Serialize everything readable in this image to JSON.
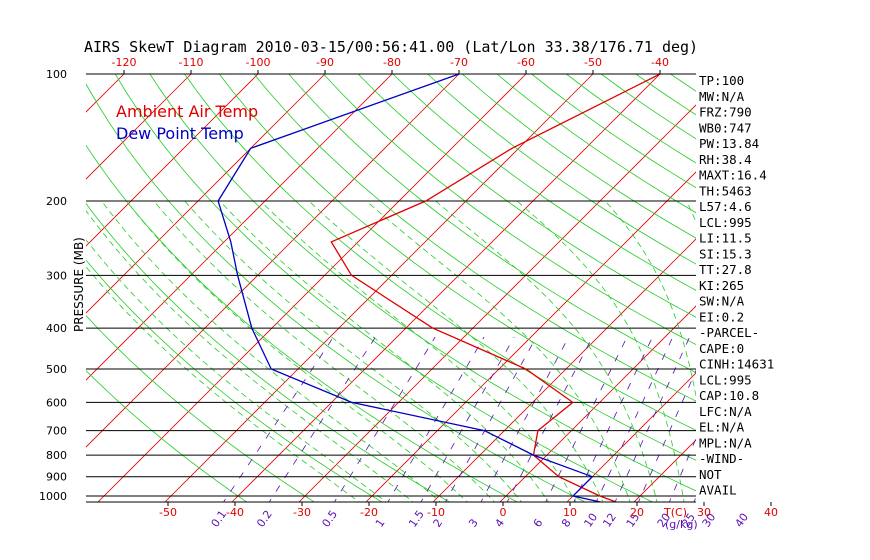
{
  "chart_data": {
    "type": "line",
    "title": "AIRS SkewT Diagram 2010-03-15/00:56:41.00 (Lat/Lon 33.38/176.71 deg)",
    "ylabel": "PRESSURE (MB)",
    "xlabel_bottom_unit": "T(C)",
    "mix_unit": "(g/kg)",
    "pressure_ticks": [
      100,
      200,
      300,
      400,
      500,
      600,
      700,
      800,
      900,
      1000
    ],
    "top_temp_ticks": [
      -120,
      -110,
      -100,
      -90,
      -80,
      -70,
      -60,
      -50,
      -40
    ],
    "bottom_temp_ticks": [
      -50,
      -40,
      -30,
      -20,
      -10,
      0,
      10,
      20,
      30,
      40
    ],
    "mixing_ratio_ticks": [
      "0.1",
      "0.2",
      "0.5",
      "1",
      "1.5",
      "2",
      "3",
      "4",
      "6",
      "8",
      "10",
      "12",
      "15",
      "20",
      "25",
      "30",
      "40"
    ],
    "mixing_ratio_values": [
      0.1,
      0.2,
      0.5,
      1,
      1.5,
      2,
      3,
      4,
      6,
      8,
      10,
      12,
      15,
      20,
      25,
      30,
      40
    ],
    "ylim": [
      100,
      1050
    ],
    "series": [
      {
        "name": "Ambient Air Temp",
        "color": "#e00000",
        "points": [
          [
            100,
            -40
          ],
          [
            150,
            -51
          ],
          [
            200,
            -56
          ],
          [
            250,
            -64
          ],
          [
            300,
            -56
          ],
          [
            400,
            -36
          ],
          [
            500,
            -16
          ],
          [
            600,
            -4
          ],
          [
            700,
            -5
          ],
          [
            800,
            -2
          ],
          [
            900,
            5
          ],
          [
            1000,
            14
          ],
          [
            1040,
            18
          ]
        ]
      },
      {
        "name": "Dew Point Temp",
        "color": "#0000c0",
        "points": [
          [
            100,
            -70
          ],
          [
            150,
            -90
          ],
          [
            200,
            -87
          ],
          [
            250,
            -79
          ],
          [
            300,
            -73
          ],
          [
            400,
            -63
          ],
          [
            500,
            -54
          ],
          [
            600,
            -37
          ],
          [
            700,
            -13
          ],
          [
            800,
            -2
          ],
          [
            900,
            10
          ],
          [
            1000,
            10
          ],
          [
            1040,
            16
          ]
        ]
      }
    ],
    "legend": [
      "Ambient Air Temp",
      "Dew Point Temp"
    ],
    "legend_position": "top-left",
    "stats": [
      "TP:100",
      "MW:N/A",
      "FRZ:790",
      "WB0:747",
      "PW:13.84",
      "RH:38.4",
      "MAXT:16.4",
      "TH:5463",
      "L57:4.6",
      "LCL:995",
      "LI:11.5",
      "SI:15.3",
      "TT:27.8",
      "KI:265",
      "SW:N/A",
      "EI:0.2",
      "-PARCEL-",
      "CAPE:0",
      "CINH:14631",
      "LCL:995",
      "CAP:10.8",
      "LFC:N/A",
      "EL:N/A",
      "MPL:N/A",
      "-WIND-",
      "NOT",
      "AVAIL"
    ],
    "colors": {
      "temp_line": "#e00000",
      "isotherm": "#e00000",
      "dry_adiabat": "#22cc22",
      "moist_adiabat": "#22cc22",
      "mixing_ratio": "#5a0fb4",
      "dewpoint_line": "#0000c0",
      "isobar": "#000000"
    }
  }
}
